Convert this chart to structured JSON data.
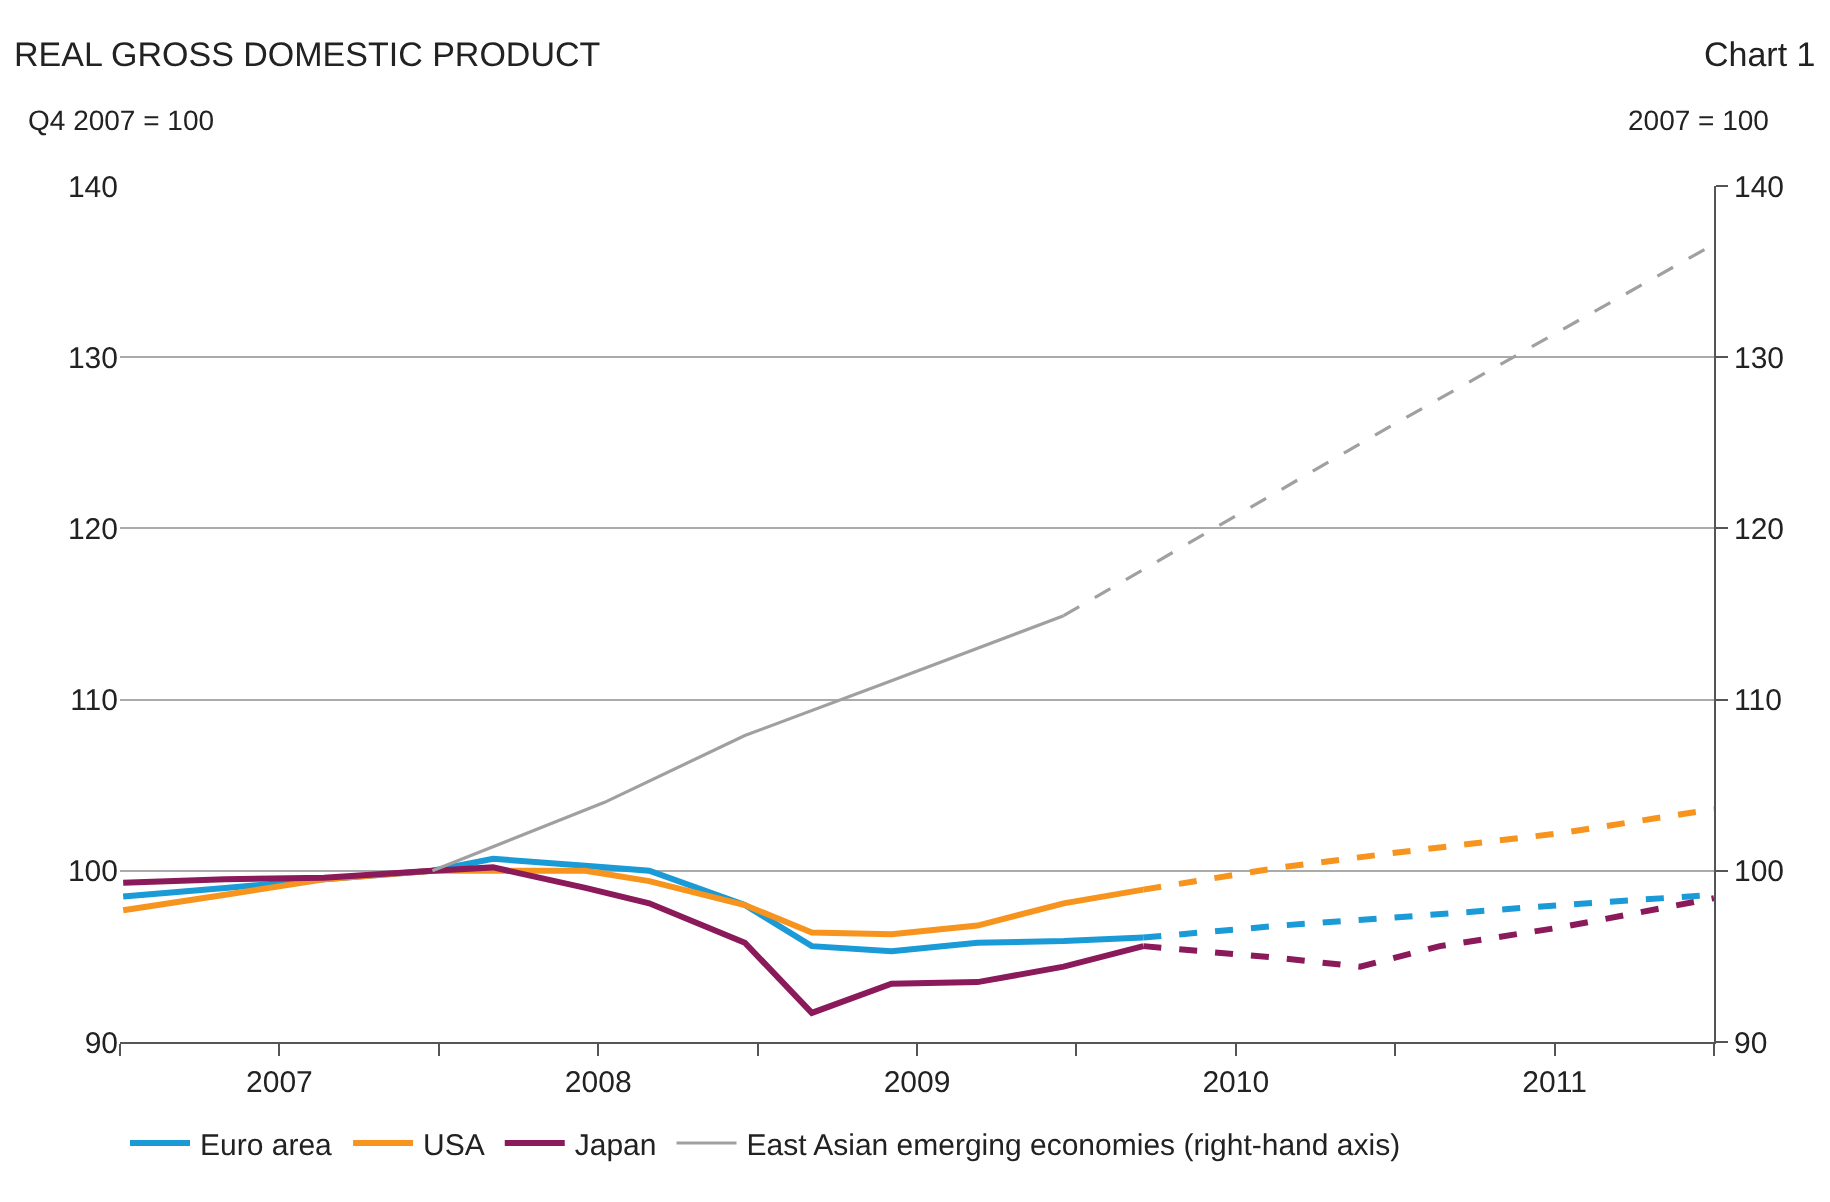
{
  "chart_data": {
    "type": "line",
    "title": "REAL GROSS DOMESTIC PRODUCT",
    "annotations": [
      "Chart 1"
    ],
    "ylabel": "Q4 2007 = 100",
    "y2label": "2007 = 100",
    "xlim": [
      2007,
      2012
    ],
    "xticks": [
      {
        "value": 2007,
        "label": null
      },
      {
        "value": 2007.5,
        "label": "2007"
      },
      {
        "value": 2008,
        "label": null
      },
      {
        "value": 2008.5,
        "label": "2008"
      },
      {
        "value": 2009,
        "label": null
      },
      {
        "value": 2009.5,
        "label": "2009"
      },
      {
        "value": 2010,
        "label": null
      },
      {
        "value": 2010.5,
        "label": "2010"
      },
      {
        "value": 2011,
        "label": null
      },
      {
        "value": 2011.5,
        "label": "2011"
      },
      {
        "value": 2012,
        "label": null
      }
    ],
    "ylim": [
      90,
      140
    ],
    "yticks": [
      90,
      100,
      110,
      120,
      130,
      140
    ],
    "y2lim": [
      90,
      140
    ],
    "y2ticks": [
      90,
      100,
      110,
      120,
      130,
      140
    ],
    "grid": "y",
    "legend": "bottom",
    "marker": "none",
    "series": [
      {
        "name": "Euro area",
        "color": "#1a9ad6",
        "line_style": "solid",
        "x": [
          2007.01,
          2007.33,
          2007.64,
          2007.98,
          2008.17,
          2008.46,
          2008.66,
          2008.96,
          2009.17,
          2009.42,
          2009.69,
          2009.96,
          2010.21
        ],
        "values": [
          98.5,
          99.0,
          99.5,
          100,
          100.7,
          100.3,
          100,
          98.0,
          95.6,
          95.3,
          95.8,
          95.9,
          96.1
        ]
      },
      {
        "name": "USA",
        "color": "#f7941d",
        "line_style": "solid",
        "x": [
          2007.01,
          2007.33,
          2007.64,
          2007.98,
          2008.17,
          2008.46,
          2008.66,
          2008.96,
          2009.17,
          2009.42,
          2009.69,
          2009.96,
          2010.21
        ],
        "values": [
          97.7,
          98.6,
          99.5,
          100,
          100,
          100,
          99.4,
          98.0,
          96.4,
          96.3,
          96.8,
          98.1,
          98.9
        ]
      },
      {
        "name": "Japan",
        "color": "#8b1a5a",
        "line_style": "solid",
        "x": [
          2007.01,
          2007.33,
          2007.64,
          2007.98,
          2008.17,
          2008.46,
          2008.66,
          2008.96,
          2009.17,
          2009.42,
          2009.69,
          2009.96,
          2010.21
        ],
        "values": [
          99.3,
          99.5,
          99.6,
          100,
          100.2,
          99.0,
          98.1,
          95.8,
          91.7,
          93.4,
          93.5,
          94.4,
          95.6
        ]
      },
      {
        "name": "East Asian emerging economies (right-hand axis)",
        "color": "#a0a0a0",
        "axis": "y2",
        "line_style": "solid",
        "x": [
          2007.98,
          2008.52,
          2008.96,
          2009.42,
          2009.96
        ],
        "values": [
          100,
          104.0,
          107.9,
          111.1,
          114.9
        ]
      },
      {
        "color": "#1a9ad6",
        "line_style": "dashed",
        "x": [
          2010.21,
          2010.64,
          2011.02,
          2011.52,
          2012.0
        ],
        "values": [
          96.1,
          96.8,
          97.3,
          98.0,
          98.6
        ]
      },
      {
        "color": "#f7941d",
        "line_style": "dashed",
        "x": [
          2010.21,
          2010.64,
          2011.02,
          2011.52,
          2012.0
        ],
        "values": [
          98.9,
          100.2,
          101.1,
          102.2,
          103.6
        ]
      },
      {
        "color": "#8b1a5a",
        "line_style": "dashed",
        "x": [
          2010.21,
          2010.64,
          2010.89,
          2011.14,
          2011.52,
          2012.0
        ],
        "values": [
          95.6,
          94.9,
          94.4,
          95.6,
          96.7,
          98.4
        ]
      },
      {
        "color": "#a0a0a0",
        "axis": "y2",
        "line_style": "dashed",
        "x": [
          2009.96,
          2010.96,
          2012.0
        ],
        "values": [
          114.9,
          125.7,
          136.6
        ]
      }
    ]
  }
}
